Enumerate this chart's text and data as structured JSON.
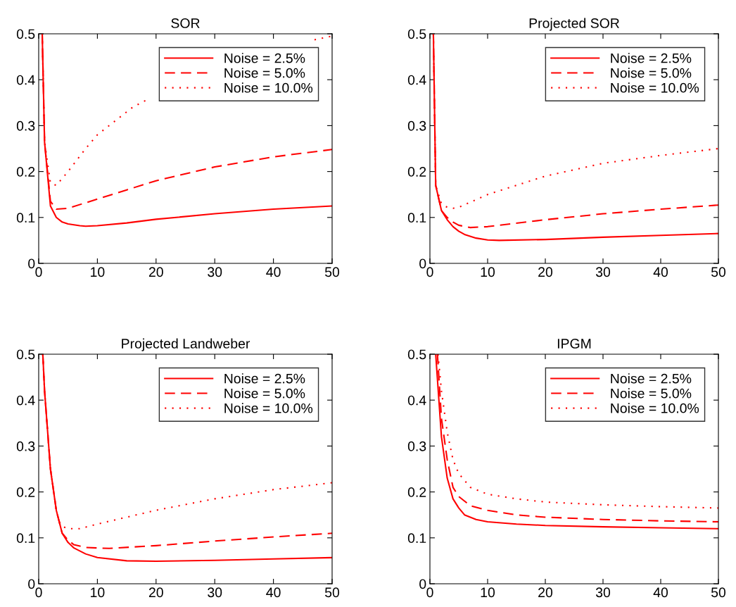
{
  "chart_data": [
    {
      "type": "line",
      "title": "SOR",
      "xlim": [
        0,
        50
      ],
      "ylim": [
        0,
        0.5
      ],
      "xticks": [
        0,
        10,
        20,
        30,
        40,
        50
      ],
      "yticks": [
        0,
        0.1,
        0.2,
        0.3,
        0.4,
        0.5
      ],
      "legend": "top right",
      "series": [
        {
          "name": "Noise = 2.5%",
          "color": "#ff0000",
          "line_style": "solid",
          "x": [
            0.6,
            1,
            2,
            3,
            4,
            5,
            7,
            8,
            10,
            15,
            20,
            30,
            40,
            50
          ],
          "values": [
            0.5,
            0.264,
            0.125,
            0.1,
            0.09,
            0.086,
            0.082,
            0.081,
            0.082,
            0.088,
            0.096,
            0.108,
            0.118,
            0.125
          ]
        },
        {
          "name": "Noise = 5.0%",
          "color": "#ff0000",
          "line_style": "dashed",
          "x": [
            0.6,
            1,
            2,
            3,
            5,
            10,
            15,
            20,
            30,
            40,
            50
          ],
          "values": [
            0.5,
            0.264,
            0.135,
            0.118,
            0.12,
            0.14,
            0.16,
            0.18,
            0.21,
            0.232,
            0.248
          ]
        },
        {
          "name": "Noise = 10.0%",
          "color": "#ff0000",
          "line_style": "dotted",
          "x": [
            0.6,
            1,
            2,
            3,
            5,
            8,
            10,
            13,
            16,
            19,
            25,
            30,
            40,
            47,
            50
          ],
          "values": [
            0.5,
            0.264,
            0.175,
            0.17,
            0.2,
            0.25,
            0.28,
            0.31,
            0.34,
            0.36,
            null,
            null,
            null,
            0.487,
            0.495
          ]
        }
      ]
    },
    {
      "type": "line",
      "title": "Projected SOR",
      "xlim": [
        0,
        50
      ],
      "ylim": [
        0,
        0.5
      ],
      "xticks": [
        0,
        10,
        20,
        30,
        40,
        50
      ],
      "yticks": [
        0,
        0.1,
        0.2,
        0.3,
        0.4,
        0.5
      ],
      "legend": "top right",
      "series": [
        {
          "name": "Noise = 2.5%",
          "color": "#ff0000",
          "line_style": "solid",
          "x": [
            0.6,
            1,
            2,
            3,
            4,
            5,
            6,
            8,
            10,
            12,
            20,
            30,
            40,
            50
          ],
          "values": [
            0.5,
            0.17,
            0.115,
            0.095,
            0.08,
            0.07,
            0.063,
            0.055,
            0.051,
            0.05,
            0.052,
            0.057,
            0.061,
            0.065
          ]
        },
        {
          "name": "Noise = 5.0%",
          "color": "#ff0000",
          "line_style": "dashed",
          "x": [
            0.6,
            1,
            2,
            3,
            4,
            5,
            7,
            10,
            20,
            30,
            40,
            50
          ],
          "values": [
            0.5,
            0.17,
            0.115,
            0.1,
            0.09,
            0.083,
            0.078,
            0.08,
            0.095,
            0.108,
            0.118,
            0.127
          ]
        },
        {
          "name": "Noise = 10.0%",
          "color": "#ff0000",
          "line_style": "dotted",
          "x": [
            0.6,
            1,
            2,
            3,
            4,
            5,
            10,
            20,
            30,
            40,
            50
          ],
          "values": [
            0.5,
            0.17,
            0.13,
            0.122,
            0.12,
            0.122,
            0.15,
            0.19,
            0.218,
            0.235,
            0.25
          ]
        }
      ]
    },
    {
      "type": "line",
      "title": "Projected Landweber",
      "xlim": [
        0,
        50
      ],
      "ylim": [
        0,
        0.5
      ],
      "xticks": [
        0,
        10,
        20,
        30,
        40,
        50
      ],
      "yticks": [
        0,
        0.1,
        0.2,
        0.3,
        0.4,
        0.5
      ],
      "legend": "top right",
      "series": [
        {
          "name": "Noise = 2.5%",
          "color": "#ff0000",
          "line_style": "solid",
          "x": [
            0.7,
            1,
            2,
            3,
            4,
            5,
            6,
            8,
            10,
            15,
            20,
            30,
            40,
            50
          ],
          "values": [
            0.5,
            0.42,
            0.25,
            0.16,
            0.11,
            0.09,
            0.078,
            0.065,
            0.057,
            0.05,
            0.049,
            0.051,
            0.054,
            0.057
          ]
        },
        {
          "name": "Noise = 5.0%",
          "color": "#ff0000",
          "line_style": "dashed",
          "x": [
            0.7,
            1,
            2,
            3,
            4,
            5,
            6,
            8,
            12,
            20,
            30,
            40,
            50
          ],
          "values": [
            0.5,
            0.42,
            0.25,
            0.16,
            0.11,
            0.095,
            0.085,
            0.079,
            0.077,
            0.083,
            0.093,
            0.102,
            0.11
          ]
        },
        {
          "name": "Noise = 10.0%",
          "color": "#ff0000",
          "line_style": "dotted",
          "x": [
            0.7,
            1,
            2,
            3,
            3.5,
            4,
            5,
            7,
            10,
            20,
            30,
            40,
            50
          ],
          "values": [
            0.5,
            0.42,
            0.25,
            0.16,
            0.135,
            0.125,
            0.12,
            0.12,
            0.13,
            0.16,
            0.185,
            0.205,
            0.22
          ]
        }
      ]
    },
    {
      "type": "line",
      "title": "IPGM",
      "xlim": [
        0,
        50
      ],
      "ylim": [
        0,
        0.5
      ],
      "xticks": [
        0,
        10,
        20,
        30,
        40,
        50
      ],
      "yticks": [
        0,
        0.1,
        0.2,
        0.3,
        0.4,
        0.5
      ],
      "legend": "top right",
      "series": [
        {
          "name": "Noise = 2.5%",
          "color": "#ff0000",
          "line_style": "solid",
          "x": [
            1,
            2,
            3,
            4,
            5,
            6,
            8,
            10,
            15,
            20,
            30,
            40,
            50
          ],
          "values": [
            0.5,
            0.32,
            0.23,
            0.185,
            0.165,
            0.15,
            0.14,
            0.135,
            0.13,
            0.127,
            0.124,
            0.122,
            0.12
          ]
        },
        {
          "name": "Noise = 5.0%",
          "color": "#ff0000",
          "line_style": "dashed",
          "x": [
            1.3,
            2,
            3,
            4,
            5,
            7,
            10,
            15,
            20,
            30,
            40,
            50
          ],
          "values": [
            0.5,
            0.36,
            0.27,
            0.21,
            0.19,
            0.17,
            0.16,
            0.15,
            0.145,
            0.14,
            0.137,
            0.135
          ]
        },
        {
          "name": "Noise = 10.0%",
          "color": "#ff0000",
          "line_style": "dotted",
          "x": [
            1.4,
            2,
            3,
            4,
            5,
            7,
            10,
            15,
            20,
            30,
            40,
            50
          ],
          "values": [
            0.5,
            0.42,
            0.33,
            0.27,
            0.24,
            0.21,
            0.195,
            0.185,
            0.178,
            0.172,
            0.168,
            0.165
          ]
        }
      ]
    }
  ]
}
